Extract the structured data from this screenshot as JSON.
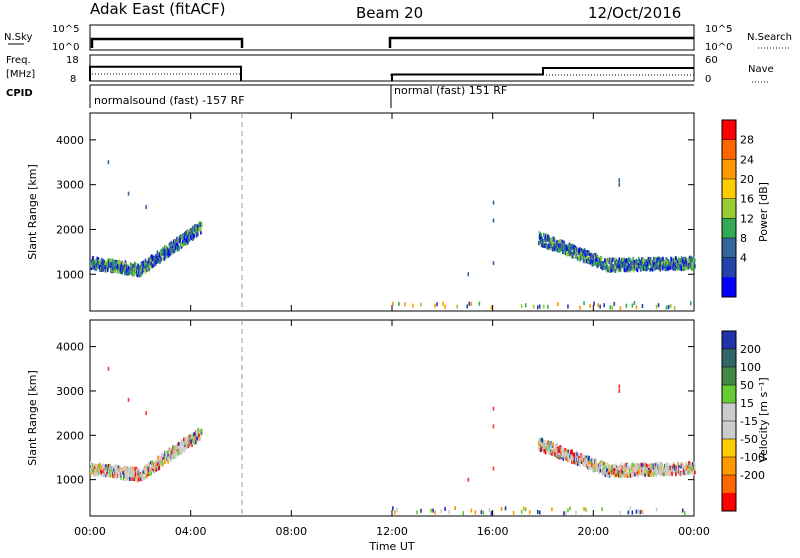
{
  "header": {
    "station": "Adak East (fitACF)",
    "beam": "Beam 20",
    "date": "12/Oct/2016"
  },
  "panels": {
    "nsky_label": "N.Sky",
    "nsky_ticks": [
      "10^5",
      "10^0"
    ],
    "nsearch_label": "N.Search",
    "nsearch_ticks": [
      "10^5",
      "10^0"
    ],
    "freq_label_1": "Freq.",
    "freq_label_2": "[MHz]",
    "freq_ticks": [
      "18",
      "8"
    ],
    "nave_label": "Nave",
    "nave_ticks": [
      "60",
      "0"
    ],
    "cpid_label": "CPID",
    "cpid_1": "normalsound (fast) -157 RF",
    "cpid_2": "normal (fast) 151 RF"
  },
  "power_scale": {
    "label": "Power [dB]",
    "ticks": [
      "28",
      "24",
      "20",
      "16",
      "12",
      "8",
      "4"
    ],
    "colors": [
      "#ff0000",
      "#ff6600",
      "#ff9900",
      "#ffcc00",
      "#99cc33",
      "#33aa55",
      "#336699",
      "#2244aa",
      "#0000ff"
    ]
  },
  "velocity_scale": {
    "label": "Velocity [m s⁻¹]",
    "ticks": [
      "200",
      "100",
      "50",
      "15",
      "-15",
      "-50",
      "-100",
      "-200"
    ],
    "colors": [
      "#2233aa",
      "#336666",
      "#448844",
      "#66cc33",
      "#cccccc",
      "#cccccc",
      "#ffcc00",
      "#ff9900",
      "#ff6600",
      "#ff0000"
    ]
  },
  "chart_data": {
    "type": "scatter",
    "xlabel": "Time UT",
    "ylabel": "Slant Range [km]",
    "x_ticks": [
      "00:00",
      "04:00",
      "08:00",
      "12:00",
      "16:00",
      "20:00",
      "00:00"
    ],
    "y_ticks": [
      "4000",
      "3000",
      "2000",
      "1000"
    ],
    "xlim_hours": [
      0,
      24
    ],
    "ylim_km": [
      180,
      4600
    ],
    "data_gap_hours": [
      6,
      12
    ],
    "freq_segments_mhz": [
      {
        "start_h": 0,
        "end_h": 6,
        "freq": 13.5
      },
      {
        "start_h": 12,
        "end_h": 18,
        "freq": 10.5
      },
      {
        "start_h": 18,
        "end_h": 24,
        "freq": 13.0
      }
    ],
    "scatter_bands": [
      {
        "name": "morning echo",
        "start_h": 0,
        "end_h": 4.4,
        "range_start_km": 1250,
        "range_min_km": 1100,
        "range_end_km": 2050
      },
      {
        "name": "evening echo",
        "start_h": 17.8,
        "end_h": 24,
        "range_start_km": 1800,
        "range_min_km": 1200,
        "range_end_km": 1250
      },
      {
        "name": "ground scatter near range",
        "start_h": 12,
        "end_h": 24,
        "range_km": 300
      }
    ]
  }
}
